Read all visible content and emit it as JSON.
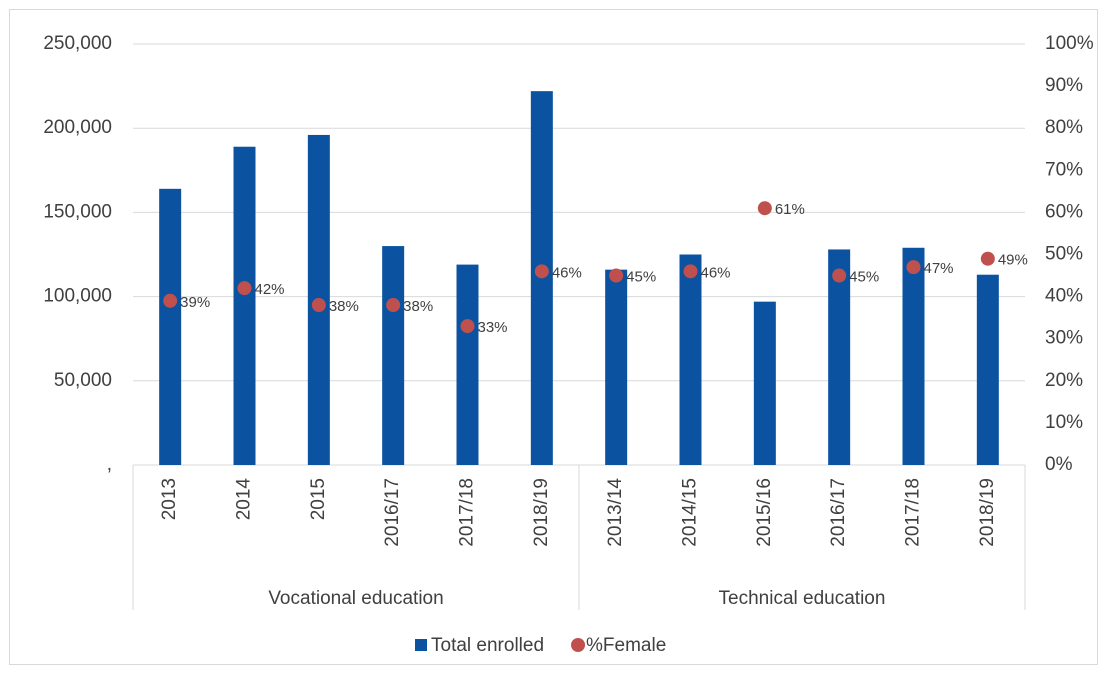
{
  "chart_data": {
    "type": "bar",
    "categories": [
      "2013",
      "2014",
      "2015",
      "2016/17",
      "2017/18",
      "2018/19",
      "2013/14",
      "2014/15",
      "2015/16",
      "2016/17",
      "2017/18",
      "2018/19"
    ],
    "groups": [
      "Vocational education",
      "Technical education"
    ],
    "series": [
      {
        "name": "Total enrolled",
        "type": "bar",
        "color": "#0b53a1",
        "values": [
          164000,
          189000,
          196000,
          130000,
          119000,
          222000,
          116000,
          125000,
          97000,
          128000,
          129000,
          113000
        ]
      },
      {
        "name": "%Female",
        "type": "scatter",
        "axis": "y2",
        "color": "#c0504d",
        "values": [
          39,
          42,
          38,
          38,
          33,
          46,
          45,
          46,
          61,
          45,
          47,
          49
        ],
        "value_labels": [
          "39%",
          "42%",
          "38%",
          "38%",
          "33%",
          "46%",
          "45%",
          "46%",
          "61%",
          "45%",
          "47%",
          "49%"
        ]
      }
    ],
    "ylim": [
      0,
      250000
    ],
    "yticks": [
      {
        "value": 0,
        "label": ","
      },
      {
        "value": 50000,
        "label": "50,000"
      },
      {
        "value": 100000,
        "label": "100,000"
      },
      {
        "value": 150000,
        "label": "150,000"
      },
      {
        "value": 200000,
        "label": "200,000"
      },
      {
        "value": 250000,
        "label": "250,000"
      }
    ],
    "y2lim": [
      0,
      100
    ],
    "y2ticks": [
      {
        "value": 0,
        "label": "0%"
      },
      {
        "value": 10,
        "label": "10%"
      },
      {
        "value": 20,
        "label": "20%"
      },
      {
        "value": 30,
        "label": "30%"
      },
      {
        "value": 40,
        "label": "40%"
      },
      {
        "value": 50,
        "label": "50%"
      },
      {
        "value": 60,
        "label": "60%"
      },
      {
        "value": 70,
        "label": "70%"
      },
      {
        "value": 80,
        "label": "80%"
      },
      {
        "value": 90,
        "label": "90%"
      },
      {
        "value": 100,
        "label": "100%"
      }
    ],
    "grid": true,
    "legend": "bottom"
  }
}
